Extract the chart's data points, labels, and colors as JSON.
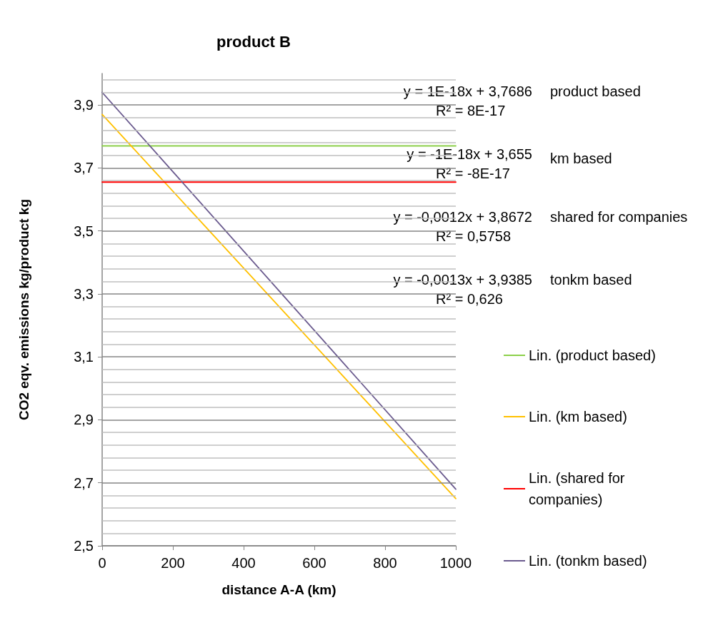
{
  "chart_data": {
    "type": "line",
    "title": "product B",
    "xlabel": "distance A-A (km)",
    "ylabel": "CO2 eqv. emissions kg/product kg",
    "x": [
      0,
      1000
    ],
    "series": [
      {
        "name": "Lin. (product based)",
        "color": "#8cd04a",
        "values": [
          3.77,
          3.77
        ]
      },
      {
        "name": "Lin. (km based)",
        "color": "#ffc000",
        "values": [
          3.87,
          2.65
        ]
      },
      {
        "name": "Lin. (shared for companies)",
        "color": "#ff0000",
        "values": [
          3.655,
          3.655
        ]
      },
      {
        "name": "Lin. (tonkm based)",
        "color": "#6a5a8e",
        "values": [
          3.94,
          2.68
        ]
      }
    ],
    "xlim": [
      0,
      1000
    ],
    "xticks": [
      0,
      200,
      400,
      600,
      800,
      1000
    ],
    "ylim": [
      2.5,
      4.0
    ],
    "yticks": [
      {
        "value": 2.5,
        "label": "2,5"
      },
      {
        "value": 2.54,
        "label": null
      },
      {
        "value": 2.58,
        "label": null
      },
      {
        "value": 2.62,
        "label": null
      },
      {
        "value": 2.66,
        "label": null
      },
      {
        "value": 2.7,
        "label": "2,7"
      },
      {
        "value": 2.74,
        "label": null
      },
      {
        "value": 2.78,
        "label": null
      },
      {
        "value": 2.82,
        "label": null
      },
      {
        "value": 2.86,
        "label": null
      },
      {
        "value": 2.9,
        "label": "2,9"
      },
      {
        "value": 2.94,
        "label": null
      },
      {
        "value": 2.98,
        "label": null
      },
      {
        "value": 3.02,
        "label": null
      },
      {
        "value": 3.06,
        "label": null
      },
      {
        "value": 3.1,
        "label": "3,1"
      },
      {
        "value": 3.14,
        "label": null
      },
      {
        "value": 3.18,
        "label": null
      },
      {
        "value": 3.22,
        "label": null
      },
      {
        "value": 3.26,
        "label": null
      },
      {
        "value": 3.3,
        "label": "3,3"
      },
      {
        "value": 3.34,
        "label": null
      },
      {
        "value": 3.38,
        "label": null
      },
      {
        "value": 3.42,
        "label": null
      },
      {
        "value": 3.46,
        "label": null
      },
      {
        "value": 3.5,
        "label": "3,5"
      },
      {
        "value": 3.54,
        "label": null
      },
      {
        "value": 3.58,
        "label": null
      },
      {
        "value": 3.62,
        "label": null
      },
      {
        "value": 3.66,
        "label": null
      },
      {
        "value": 3.7,
        "label": "3,7"
      },
      {
        "value": 3.74,
        "label": null
      },
      {
        "value": 3.78,
        "label": null
      },
      {
        "value": 3.82,
        "label": null
      },
      {
        "value": 3.86,
        "label": null
      },
      {
        "value": 3.9,
        "label": "3,9"
      },
      {
        "value": 3.94,
        "label": null
      },
      {
        "value": 3.98,
        "label": null
      }
    ],
    "grid": "y",
    "legend": "right",
    "marker": "none",
    "line_style": "solid",
    "annotations": [
      "y = 1E-18x + 3,7686",
      "R² = 8E-17",
      "product based",
      "y = -1E-18x + 3,655",
      "R² = -8E-17",
      "km based",
      "y = -0,0012x + 3,8672",
      "R² = 0,5758",
      "shared for companies",
      "y = -0,0013x + 3,9385",
      "R² = 0,626",
      "tonkm based"
    ]
  }
}
